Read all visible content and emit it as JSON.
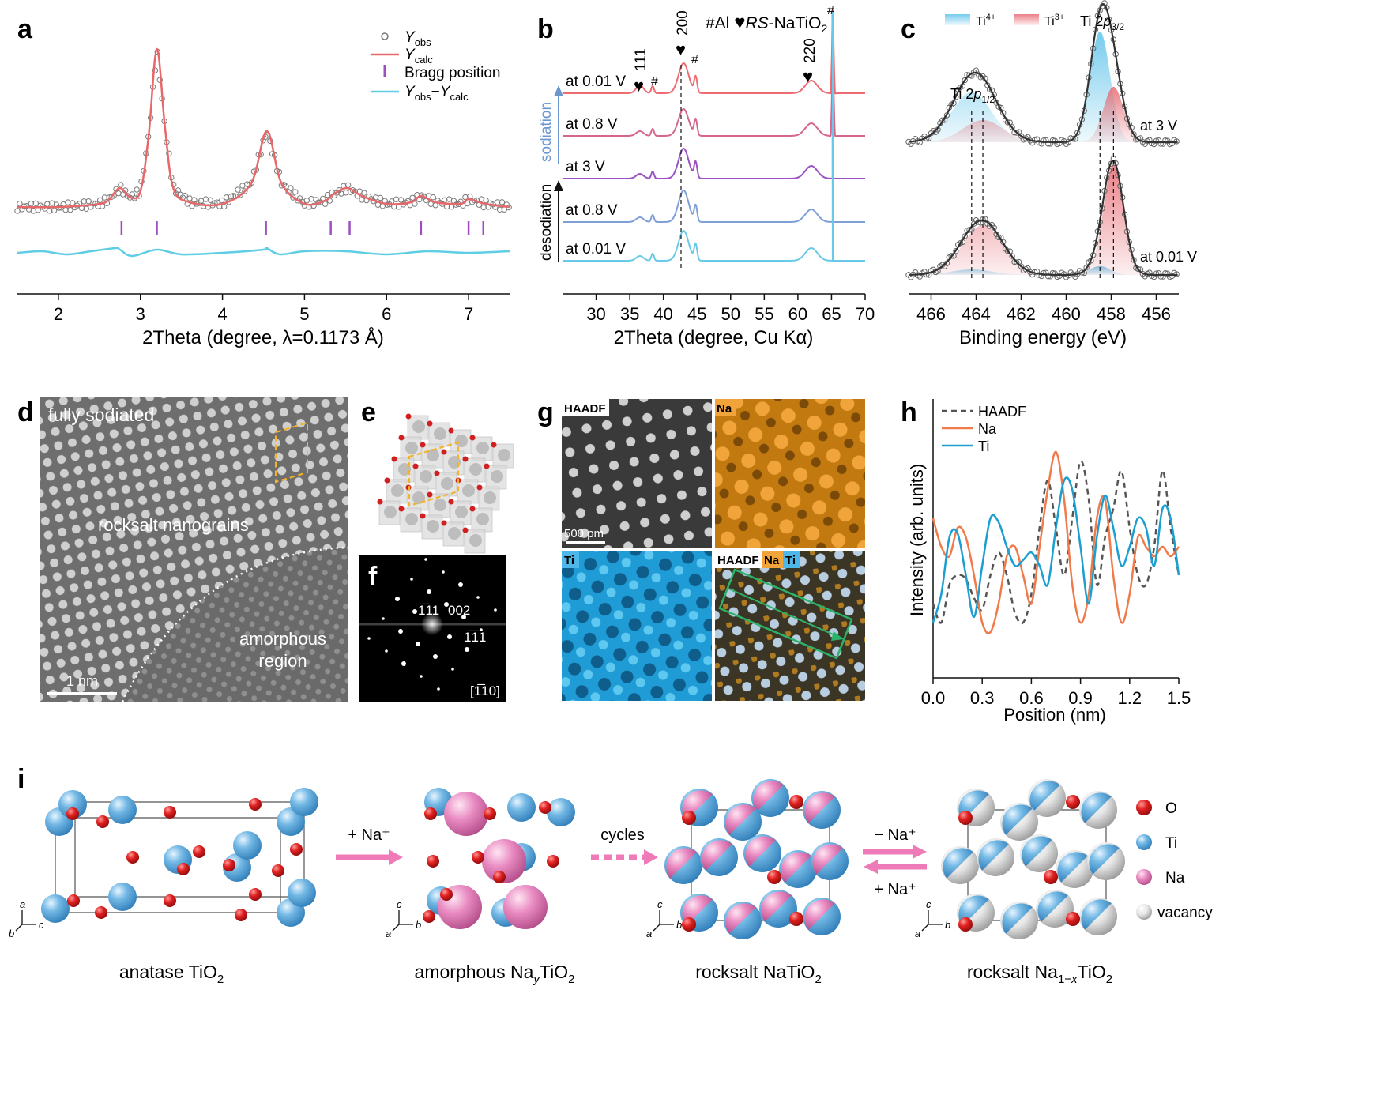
{
  "panels": {
    "a": {
      "label": "a",
      "legend": [
        "Y_obs",
        "Y_calc",
        "Bragg position",
        "Y_obs−Y_calc"
      ],
      "xlabel": "2Theta (degree, λ=0.1173 Å)",
      "colors": {
        "obs": "#7a7a7a",
        "calc": "#e8686a",
        "bragg": "#9b4fc0",
        "diff": "#5fcde4"
      }
    },
    "b": {
      "label": "b",
      "legend": "#Al ♥RS-NaTiO₂",
      "xlabel": "2Theta (degree, Cu Kα)",
      "traces": [
        "at 0.01 V",
        "at 0.8 V",
        "at 3 V",
        "at 0.8 V",
        "at 0.01 V"
      ],
      "arrow_up": "sodiation",
      "arrow_down": "desodiation",
      "peak_labels": [
        "111",
        "200",
        "220"
      ],
      "hash": "#",
      "colors": [
        "#ee6b72",
        "#d5668c",
        "#9a52c4",
        "#7f9fd7",
        "#6ac9e8"
      ]
    },
    "c": {
      "label": "c",
      "legend": [
        "Ti4+",
        "Ti3+"
      ],
      "peaks": [
        "Ti 2p1/2",
        "Ti 2p3/2"
      ],
      "states": [
        "at 3 V",
        "at 0.01 V"
      ],
      "xlabel": "Binding energy (eV)",
      "colors": {
        "ti4": "#5ec3ea",
        "ti3": "#e66a72"
      }
    },
    "d": {
      "label": "d",
      "texts": [
        "fully sodiated",
        "rocksalt nanograins",
        "amorphous",
        "region",
        "1 nm"
      ]
    },
    "e": {
      "label": "e"
    },
    "f": {
      "label": "f",
      "spots": [
        "1̅11",
        "002",
        "1̅1̅1"
      ],
      "zone": "[1̅10]"
    },
    "g": {
      "label": "g",
      "maps": [
        "HAADF",
        "Na",
        "Ti",
        "HAADF",
        "Na",
        "Ti"
      ],
      "scalebar": "500 pm"
    },
    "h": {
      "label": "h",
      "legend": [
        "HAADF",
        "Na",
        "Ti"
      ],
      "ylabel": "Intensity (arb. units)",
      "xlabel": "Position (nm)"
    },
    "i": {
      "label": "i",
      "structures": [
        "anatase TiO₂",
        "amorphous NaᵧTiO₂",
        "rocksalt NaTiO₂",
        "rocksalt Na₁₋ₓTiO₂"
      ],
      "arrows": [
        "+ Na⁺",
        "cycles",
        "− Na⁺",
        "+ Na⁺"
      ],
      "legend": [
        "O",
        "Ti",
        "Na",
        "vacancy"
      ],
      "colors": {
        "O": "#d42020",
        "Ti": "#5aaee0",
        "Na": "#e06aae",
        "vacancy": "#e0e0e0"
      }
    }
  },
  "chart_data": [
    {
      "type": "line",
      "panel": "a",
      "xlabel": "2Theta (degree, λ=0.1173 Å)",
      "xlim": [
        1.5,
        7.5
      ],
      "xticks": [
        2,
        3,
        4,
        5,
        6,
        7
      ],
      "series": [
        {
          "name": "Y_calc",
          "x": [
            1.5,
            2.0,
            2.5,
            2.62,
            2.75,
            2.88,
            3.0,
            3.1,
            3.2,
            3.3,
            3.4,
            3.6,
            4.0,
            4.35,
            4.54,
            4.72,
            5.0,
            5.25,
            5.35,
            5.52,
            5.7,
            6.0,
            6.3,
            6.42,
            6.6,
            6.9,
            7.0,
            7.2,
            7.5
          ],
          "y": [
            0.0,
            0.0,
            0.02,
            0.05,
            0.12,
            0.06,
            0.1,
            0.45,
            1.0,
            0.5,
            0.12,
            0.03,
            0.02,
            0.15,
            0.48,
            0.15,
            0.02,
            0.04,
            0.08,
            0.12,
            0.07,
            0.02,
            0.03,
            0.07,
            0.03,
            0.02,
            0.05,
            0.02,
            0.0
          ]
        },
        {
          "name": "Y_obs−Y_calc",
          "x": [
            1.5,
            1.8,
            2.1,
            2.4,
            2.7,
            2.75,
            2.9,
            3.2,
            3.5,
            4.0,
            4.5,
            4.54,
            4.7,
            5.0,
            5.5,
            6.0,
            6.5,
            7.0,
            7.5
          ],
          "y": [
            0.0,
            0.01,
            -0.01,
            0.01,
            0.03,
            0.02,
            -0.02,
            0.02,
            -0.01,
            0.0,
            0.02,
            0.03,
            -0.01,
            0.01,
            0.01,
            -0.01,
            0.01,
            0.0,
            0.01
          ]
        }
      ],
      "bragg_positions": [
        2.77,
        3.2,
        4.53,
        5.32,
        5.55,
        6.42,
        7.0,
        7.18
      ]
    },
    {
      "type": "line",
      "panel": "b",
      "xlabel": "2Theta (degree, Cu Kα)",
      "xlim": [
        25,
        70
      ],
      "xticks": [
        30,
        35,
        40,
        45,
        50,
        55,
        60,
        65,
        70
      ],
      "peaks": [
        36.5,
        38.4,
        43.0,
        44.8,
        62.0,
        65.2
      ],
      "series": [
        {
          "name": "at 0.01 V"
        },
        {
          "name": "at 0.8 V"
        },
        {
          "name": "at 3 V"
        },
        {
          "name": "at 0.8 V"
        },
        {
          "name": "at 0.01 V"
        }
      ]
    },
    {
      "type": "area",
      "panel": "c",
      "xlabel": "Binding energy (eV)",
      "xlim": [
        467,
        455
      ],
      "xticks": [
        466,
        464,
        462,
        460,
        458,
        456
      ],
      "series": [
        {
          "name": "Ti4+",
          "state": "at 3 V",
          "peaks": [
            464.2,
            458.5
          ],
          "heights": [
            0.45,
            1.0
          ]
        },
        {
          "name": "Ti3+",
          "state": "at 3 V",
          "peaks": [
            463.7,
            457.9
          ],
          "heights": [
            0.2,
            0.5
          ]
        },
        {
          "name": "Ti4+",
          "state": "at 0.01 V",
          "peaks": [
            464.2,
            458.5
          ],
          "heights": [
            0.05,
            0.08
          ]
        },
        {
          "name": "Ti3+",
          "state": "at 0.01 V",
          "peaks": [
            463.7,
            457.9
          ],
          "heights": [
            0.45,
            1.0
          ]
        }
      ]
    },
    {
      "type": "line",
      "panel": "h",
      "xlabel": "Position (nm)",
      "ylabel": "Intensity (arb. units)",
      "xlim": [
        0.0,
        1.5
      ],
      "xticks": [
        0.0,
        0.3,
        0.6,
        0.9,
        1.2,
        1.5
      ],
      "series": [
        {
          "name": "HAADF",
          "x": [
            0.0,
            0.05,
            0.1,
            0.15,
            0.2,
            0.25,
            0.3,
            0.35,
            0.4,
            0.45,
            0.5,
            0.55,
            0.6,
            0.65,
            0.7,
            0.75,
            0.8,
            0.85,
            0.9,
            0.95,
            1.0,
            1.05,
            1.1,
            1.15,
            1.2,
            1.25,
            1.3,
            1.35,
            1.4,
            1.45,
            1.5
          ],
          "y": [
            0.15,
            0.05,
            0.25,
            0.3,
            0.28,
            0.18,
            0.12,
            0.3,
            0.42,
            0.3,
            0.1,
            0.05,
            0.2,
            0.55,
            0.8,
            0.55,
            0.3,
            0.6,
            0.9,
            0.7,
            0.25,
            0.5,
            0.65,
            0.85,
            0.55,
            0.3,
            0.25,
            0.45,
            0.85,
            0.55,
            0.3
          ]
        },
        {
          "name": "Na",
          "x": [
            0.0,
            0.05,
            0.1,
            0.15,
            0.2,
            0.25,
            0.3,
            0.35,
            0.4,
            0.45,
            0.5,
            0.55,
            0.6,
            0.65,
            0.7,
            0.75,
            0.8,
            0.85,
            0.9,
            0.95,
            1.0,
            1.05,
            1.1,
            1.15,
            1.2,
            1.25,
            1.3,
            1.35,
            1.4,
            1.45,
            1.5
          ],
          "y": [
            0.6,
            0.45,
            0.4,
            0.55,
            0.5,
            0.3,
            0.05,
            0.0,
            0.15,
            0.4,
            0.45,
            0.3,
            0.15,
            0.45,
            0.75,
            0.95,
            0.7,
            0.25,
            0.05,
            0.2,
            0.6,
            0.7,
            0.3,
            0.05,
            0.2,
            0.5,
            0.45,
            0.4,
            0.45,
            0.4,
            0.45
          ]
        },
        {
          "name": "Ti",
          "x": [
            0.0,
            0.05,
            0.1,
            0.15,
            0.2,
            0.25,
            0.3,
            0.35,
            0.4,
            0.45,
            0.5,
            0.55,
            0.6,
            0.65,
            0.7,
            0.75,
            0.8,
            0.85,
            0.9,
            0.95,
            1.0,
            1.05,
            1.1,
            1.15,
            1.2,
            1.25,
            1.3,
            1.35,
            1.4,
            1.45,
            1.5
          ],
          "y": [
            0.05,
            0.2,
            0.5,
            0.52,
            0.3,
            0.08,
            0.35,
            0.6,
            0.58,
            0.45,
            0.35,
            0.38,
            0.42,
            0.35,
            0.25,
            0.55,
            0.8,
            0.75,
            0.45,
            0.15,
            0.5,
            0.72,
            0.55,
            0.35,
            0.45,
            0.6,
            0.55,
            0.35,
            0.65,
            0.6,
            0.3
          ]
        }
      ]
    }
  ]
}
